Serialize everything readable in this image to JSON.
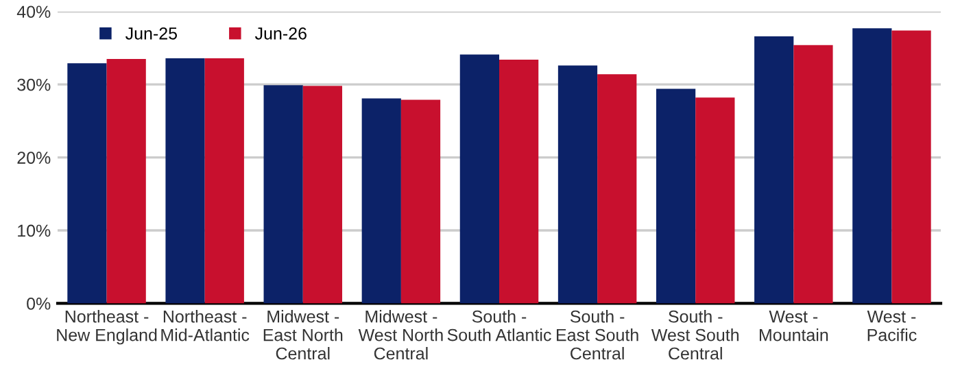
{
  "chart_data": {
    "type": "bar",
    "categories": [
      "Northeast -\nNew England",
      "Northeast -\nMid-Atlantic",
      "Midwest -\nEast North\nCentral",
      "Midwest -\nWest North\nCentral",
      "South -\nSouth Atlantic",
      "South -\nEast South\nCentral",
      "South -\nWest South\nCentral",
      "West -\nMountain",
      "West -\nPacific"
    ],
    "series": [
      {
        "name": "Jun-25",
        "color": "#0c2268",
        "values": [
          32.9,
          33.6,
          29.9,
          28.1,
          34.1,
          32.6,
          29.4,
          36.6,
          37.7
        ]
      },
      {
        "name": "Jun-26",
        "color": "#c8102e",
        "values": [
          33.5,
          33.6,
          29.8,
          27.9,
          33.4,
          31.4,
          28.2,
          35.4,
          37.4
        ]
      }
    ],
    "ylim": [
      0,
      40
    ],
    "yticks": [
      {
        "value": 0,
        "label": "0%"
      },
      {
        "value": 10,
        "label": "10%"
      },
      {
        "value": 20,
        "label": "20%"
      },
      {
        "value": 30,
        "label": "30%"
      },
      {
        "value": 40,
        "label": "40%"
      }
    ],
    "grid": "y",
    "legend": "top left"
  }
}
